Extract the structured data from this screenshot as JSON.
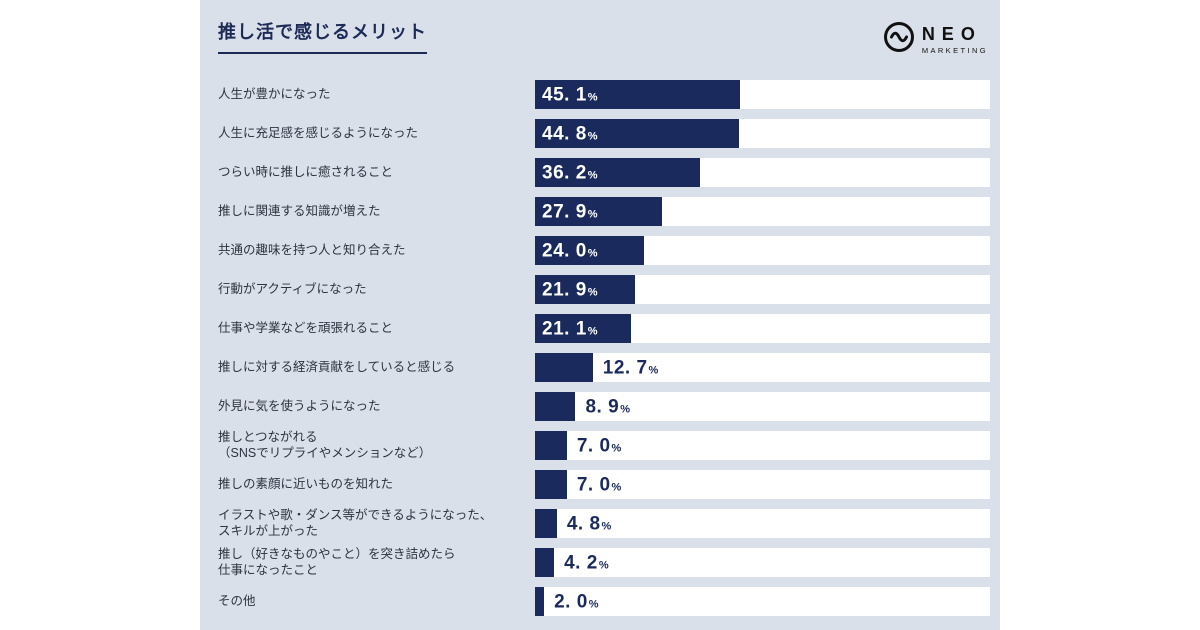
{
  "header": {
    "title": "推し活で感じるメリット",
    "logo": {
      "name": "NEO",
      "sub": "MARKETING"
    }
  },
  "colors": {
    "bar": "#1b2a5c",
    "card_background": "#d9e0e9",
    "track": "#ffffff",
    "title_text": "#1d2a57",
    "label_text": "#2e3340"
  },
  "chart_data": {
    "type": "bar",
    "orientation": "horizontal",
    "title": "推し活で感じるメリット",
    "unit": "%",
    "xlim": [
      0,
      100
    ],
    "value_label_inside_threshold": 20,
    "categories": [
      "人生が豊かになった",
      "人生に充足感を感じるようになった",
      "つらい時に推しに癒されること",
      "推しに関連する知識が増えた",
      "共通の趣味を持つ人と知り合えた",
      "行動がアクティブになった",
      "仕事や学業などを頑張れること",
      "推しに対する経済貢献をしていると感じる",
      "外見に気を使うようになった",
      "推しとつながれる\n（SNSでリプライやメンションなど）",
      "推しの素顔に近いものを知れた",
      "イラストや歌・ダンス等ができるようになった、\nスキルが上がった",
      "推し（好きなものやこと）を突き詰めたら\n仕事になったこと",
      "その他"
    ],
    "values": [
      45.1,
      44.8,
      36.2,
      27.9,
      24.0,
      21.9,
      21.1,
      12.7,
      8.9,
      7.0,
      7.0,
      4.8,
      4.2,
      2.0
    ]
  }
}
